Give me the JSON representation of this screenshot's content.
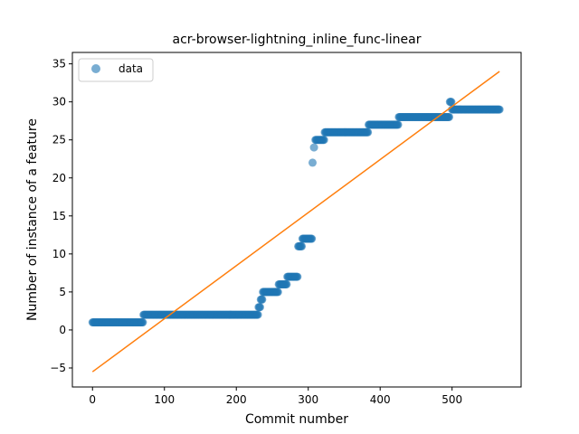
{
  "chart_data": {
    "type": "scatter",
    "title": "acr-browser-lightning_inline_func-linear",
    "xlabel": "Commit number",
    "ylabel": "Number of instance of a feature",
    "xlim": [
      -28,
      596
    ],
    "ylim": [
      -7.5,
      36.5
    ],
    "xticks": [
      0,
      100,
      200,
      300,
      400,
      500
    ],
    "yticks": [
      -5,
      0,
      5,
      10,
      15,
      20,
      25,
      30,
      35
    ],
    "grid": false,
    "legend": {
      "position": "top-left",
      "entries": [
        "data"
      ]
    },
    "colors": {
      "data": "#1f77b4",
      "fit": "#ff7f0e"
    },
    "series": [
      {
        "name": "data",
        "kind": "scatter",
        "segments": [
          {
            "x0": 0,
            "x1": 70,
            "y": 1
          },
          {
            "x0": 71,
            "x1": 230,
            "y": 2
          },
          {
            "x0": 231,
            "x1": 233,
            "y": 3
          },
          {
            "x0": 234,
            "x1": 236,
            "y": 4
          },
          {
            "x0": 237,
            "x1": 258,
            "y": 5
          },
          {
            "x0": 259,
            "x1": 270,
            "y": 6
          },
          {
            "x0": 271,
            "x1": 285,
            "y": 7
          },
          {
            "x0": 286,
            "x1": 291,
            "y": 11
          },
          {
            "x0": 292,
            "x1": 305,
            "y": 12
          },
          {
            "x0": 306,
            "x1": 306,
            "y": 22
          },
          {
            "x0": 308,
            "x1": 308,
            "y": 24
          },
          {
            "x0": 310,
            "x1": 322,
            "y": 25
          },
          {
            "x0": 323,
            "x1": 383,
            "y": 26
          },
          {
            "x0": 384,
            "x1": 425,
            "y": 27
          },
          {
            "x0": 426,
            "x1": 496,
            "y": 28
          },
          {
            "x0": 497,
            "x1": 499,
            "y": 30
          },
          {
            "x0": 500,
            "x1": 566,
            "y": 29
          }
        ]
      },
      {
        "name": "",
        "kind": "line",
        "x": [
          0,
          566
        ],
        "y": [
          -5.5,
          34
        ]
      }
    ]
  }
}
